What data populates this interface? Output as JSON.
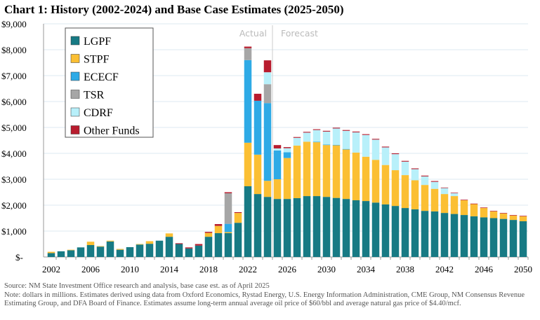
{
  "chart_data": {
    "type": "bar",
    "stacked": true,
    "title": "Chart 1: History (2002-2024) and Base Case Estimates (2025-2050)",
    "xlabel": "",
    "ylabel": "",
    "ylim": [
      0,
      9000
    ],
    "yticks": [
      0,
      1000,
      2000,
      3000,
      4000,
      5000,
      6000,
      7000,
      8000,
      9000
    ],
    "ytick_labels": [
      "$-",
      "$1,000",
      "$2,000",
      "$3,000",
      "$4,000",
      "$5,000",
      "$6,000",
      "$7,000",
      "$8,000",
      "$9,000"
    ],
    "xtick_labels": [
      "2002",
      "2006",
      "2010",
      "2014",
      "2018",
      "2022",
      "2026",
      "2030",
      "2034",
      "2038",
      "2042",
      "2046",
      "2050"
    ],
    "grid": true,
    "legend_position": "top-left",
    "annotations": {
      "actual": "Actual",
      "forecast": "Forecast"
    },
    "categories": [
      2002,
      2003,
      2004,
      2005,
      2006,
      2007,
      2008,
      2009,
      2010,
      2011,
      2012,
      2013,
      2014,
      2015,
      2016,
      2017,
      2018,
      2019,
      2020,
      2021,
      2022,
      2023,
      2024,
      2025,
      2026,
      2027,
      2028,
      2029,
      2030,
      2031,
      2032,
      2033,
      2034,
      2035,
      2036,
      2037,
      2038,
      2039,
      2040,
      2041,
      2042,
      2043,
      2044,
      2045,
      2046,
      2047,
      2048,
      2049,
      2050
    ],
    "series": [
      {
        "name": "LGPF",
        "color": "#177a84",
        "values": [
          150,
          220,
          260,
          370,
          460,
          400,
          600,
          280,
          380,
          480,
          510,
          630,
          780,
          500,
          330,
          440,
          780,
          920,
          920,
          1320,
          2730,
          2430,
          2320,
          2240,
          2240,
          2270,
          2350,
          2350,
          2320,
          2280,
          2240,
          2190,
          2160,
          2100,
          2030,
          1970,
          1890,
          1840,
          1780,
          1760,
          1700,
          1660,
          1620,
          1570,
          1530,
          1500,
          1470,
          1430,
          1380
        ]
      },
      {
        "name": "STPF",
        "color": "#fbbf33",
        "values": [
          50,
          0,
          20,
          0,
          130,
          20,
          30,
          30,
          0,
          20,
          100,
          0,
          130,
          0,
          0,
          0,
          150,
          280,
          40,
          380,
          1680,
          1520,
          620,
          760,
          1580,
          2030,
          2100,
          2080,
          2000,
          2030,
          1910,
          1840,
          1710,
          1650,
          1520,
          1380,
          1270,
          1120,
          1000,
          870,
          730,
          690,
          570,
          470,
          360,
          260,
          210,
          170,
          190
        ]
      },
      {
        "name": "ECECF",
        "color": "#2eaae6",
        "values": [
          0,
          0,
          0,
          0,
          0,
          0,
          0,
          0,
          0,
          0,
          0,
          0,
          0,
          0,
          0,
          0,
          0,
          0,
          320,
          0,
          3190,
          2080,
          3000,
          1110,
          220,
          0,
          0,
          20,
          20,
          20,
          20,
          0,
          0,
          0,
          0,
          0,
          0,
          0,
          0,
          0,
          0,
          0,
          0,
          0,
          0,
          0,
          0,
          0,
          0
        ]
      },
      {
        "name": "TSR",
        "color": "#a6a6a6",
        "values": [
          0,
          0,
          0,
          0,
          0,
          0,
          0,
          0,
          0,
          0,
          0,
          0,
          0,
          0,
          0,
          0,
          0,
          0,
          1180,
          0,
          460,
          0,
          730,
          0,
          0,
          0,
          0,
          0,
          0,
          0,
          0,
          0,
          0,
          0,
          0,
          0,
          0,
          0,
          0,
          0,
          0,
          0,
          0,
          0,
          0,
          0,
          0,
          0,
          0
        ]
      },
      {
        "name": "CDRF",
        "color": "#b8f0fa",
        "values": [
          0,
          0,
          0,
          0,
          0,
          0,
          0,
          0,
          0,
          0,
          0,
          0,
          0,
          0,
          0,
          0,
          0,
          0,
          0,
          0,
          0,
          0,
          460,
          80,
          160,
          300,
          350,
          450,
          500,
          630,
          700,
          780,
          840,
          780,
          680,
          620,
          520,
          430,
          330,
          270,
          230,
          110,
          0,
          0,
          0,
          0,
          0,
          0,
          0
        ]
      },
      {
        "name": "Other Funds",
        "color": "#b81c2e",
        "values": [
          0,
          0,
          0,
          0,
          0,
          0,
          0,
          0,
          0,
          0,
          0,
          0,
          0,
          30,
          40,
          60,
          40,
          70,
          40,
          30,
          60,
          270,
          460,
          130,
          40,
          30,
          30,
          30,
          30,
          30,
          30,
          30,
          30,
          30,
          30,
          30,
          30,
          30,
          30,
          30,
          20,
          20,
          20,
          20,
          20,
          20,
          20,
          20,
          20
        ]
      }
    ]
  },
  "notes": {
    "source": "Source: NM State Investment Office research and analysis, base case est. as of April 2025",
    "note": "Note: dollars in millions. Estimates derived using data from Oxford Economics, Rystad Energy, U.S. Energy Information Administration, CME Group, NM Consensus Revenue Estimating Group, and DFA Board of Finance. Estimates assume long-term annual average oil price of $60/bbl and average natural gas price of $4.40/mcf."
  }
}
